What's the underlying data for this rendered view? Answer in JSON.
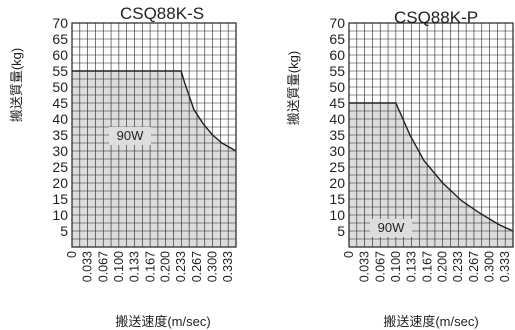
{
  "chart_data": [
    {
      "type": "area",
      "title": "CSQ88K-S",
      "xlabel": "搬送速度(m/sec)",
      "ylabel": "搬送質量(kg)",
      "x_ticks": [
        "0",
        "0.033",
        "0.067",
        "0.100",
        "0.133",
        "0.167",
        "0.200",
        "0.233",
        "0.267",
        "0.300",
        "0.333"
      ],
      "y_ticks": [
        "5",
        "10",
        "15",
        "20",
        "25",
        "30",
        "35",
        "40",
        "45",
        "50",
        "55",
        "60",
        "65",
        "70"
      ],
      "xlim": [
        0,
        0.35
      ],
      "ylim": [
        0,
        70
      ],
      "grid": true,
      "annotation": "90W",
      "series": [
        {
          "x": [
            0,
            0.233,
            0.24,
            0.26,
            0.28,
            0.3,
            0.32,
            0.35
          ],
          "y": [
            55,
            55,
            51.5,
            43,
            38.5,
            35,
            32.5,
            30
          ]
        }
      ]
    },
    {
      "type": "area",
      "title": "CSQ88K-P",
      "xlabel": "搬送速度(m/sec)",
      "ylabel": "搬送質量(kg)",
      "x_ticks": [
        "0",
        "0.033",
        "0.067",
        "0.100",
        "0.133",
        "0.167",
        "0.200",
        "0.233",
        "0.267",
        "0.300",
        "0.333"
      ],
      "y_ticks": [
        "5",
        "10",
        "15",
        "20",
        "25",
        "30",
        "35",
        "40",
        "45",
        "50",
        "55",
        "60",
        "65",
        "70"
      ],
      "xlim": [
        0,
        0.35
      ],
      "ylim": [
        0,
        70
      ],
      "grid": true,
      "annotation": "90W",
      "series": [
        {
          "x": [
            0,
            0.1,
            0.13,
            0.16,
            0.2,
            0.24,
            0.28,
            0.32,
            0.35
          ],
          "y": [
            45,
            45,
            35,
            27,
            20,
            14.5,
            10.5,
            7,
            5
          ]
        }
      ]
    }
  ]
}
